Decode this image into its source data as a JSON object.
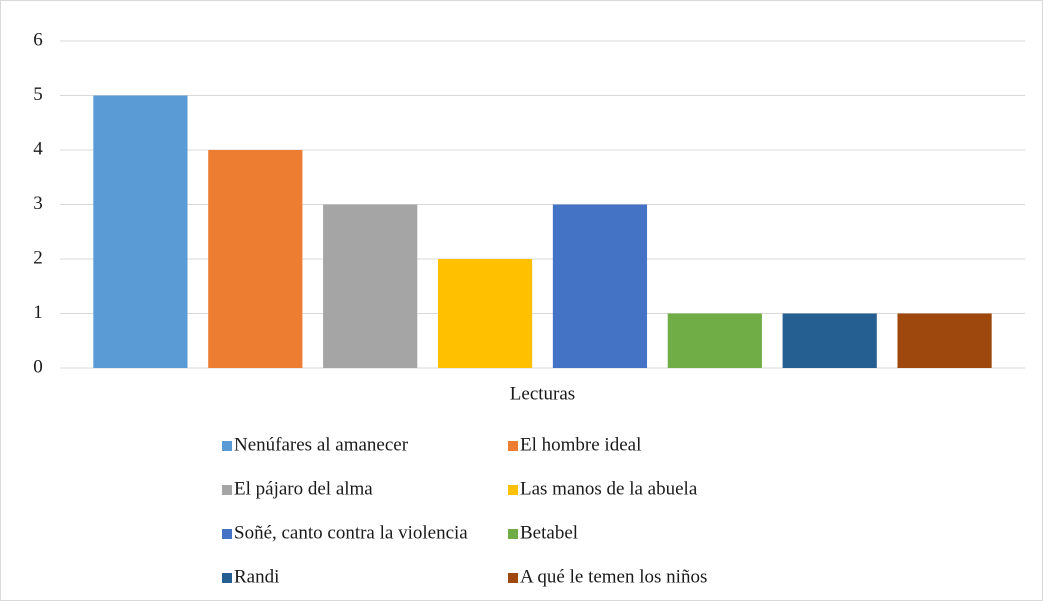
{
  "chart_data": {
    "type": "bar",
    "categories": [
      "Lecturas"
    ],
    "series": [
      {
        "name": "Nenúfares al amanecer",
        "color": "#5b9bd5",
        "values": [
          5
        ]
      },
      {
        "name": "El hombre ideal",
        "color": "#ed7d31",
        "values": [
          4
        ]
      },
      {
        "name": "El pájaro del alma",
        "color": "#a5a5a5",
        "values": [
          3
        ]
      },
      {
        "name": "Las manos de la abuela",
        "color": "#ffc000",
        "values": [
          2
        ]
      },
      {
        "name": "Soñé, canto contra la violencia",
        "color": "#4472c4",
        "values": [
          3
        ]
      },
      {
        "name": "Betabel",
        "color": "#70ad47",
        "values": [
          1
        ]
      },
      {
        "name": "Randi",
        "color": "#255e91",
        "values": [
          1
        ]
      },
      {
        "name": "A qué le temen los niños",
        "color": "#9e480e",
        "values": [
          1
        ]
      }
    ],
    "ylim": [
      0,
      6
    ],
    "yticks": [
      0,
      1,
      2,
      3,
      4,
      5,
      6
    ],
    "grid": true,
    "legend": "bottom"
  }
}
